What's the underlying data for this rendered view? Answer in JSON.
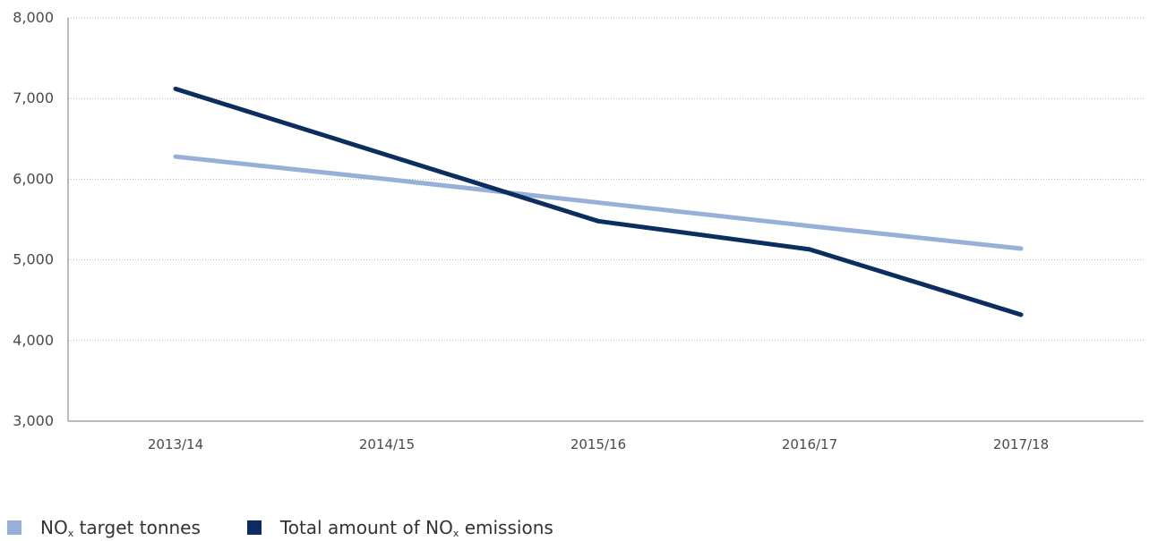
{
  "chart_data": {
    "type": "line",
    "categories": [
      "2013/14",
      "2014/15",
      "2015/16",
      "2016/17",
      "2017/18"
    ],
    "ylim": [
      3000,
      8000
    ],
    "yticks": [
      3000,
      4000,
      5000,
      6000,
      7000,
      8000
    ],
    "ytick_labels": [
      "3,000",
      "4,000",
      "5,000",
      "6,000",
      "7,000",
      "8,000"
    ],
    "grid": "horizontal dotted",
    "legend_position": "bottom-left",
    "series": [
      {
        "name_main": "NO",
        "name_sub": "x",
        "name_rest": " target tonnes",
        "color": "#96b0d8",
        "values": [
          6280,
          6000,
          5710,
          5420,
          5140
        ]
      },
      {
        "name_main": "Total amount of NO",
        "name_sub": "x",
        "name_rest": " emissions",
        "color": "#0b2e5e",
        "values": [
          7120,
          6300,
          5480,
          5130,
          4320
        ]
      }
    ]
  }
}
